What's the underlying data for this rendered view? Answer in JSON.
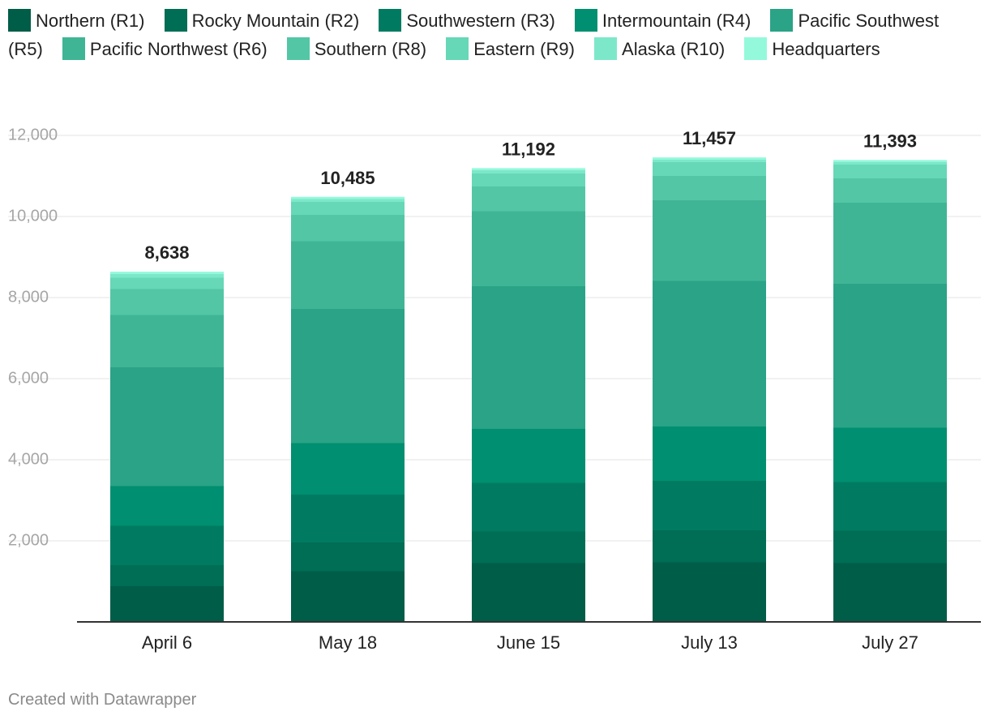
{
  "chart_data": {
    "type": "bar",
    "stacked": true,
    "categories": [
      "April 6",
      "May 18",
      "June 15",
      "July 13",
      "July 27"
    ],
    "totals": [
      "8,638",
      "10,485",
      "11,192",
      "11,457",
      "11,393"
    ],
    "ylim": [
      0,
      12000
    ],
    "yticks": [
      2000,
      4000,
      6000,
      8000,
      10000,
      12000
    ],
    "ytick_labels": [
      "2,000",
      "4,000",
      "6,000",
      "8,000",
      "10,000",
      "12,000"
    ],
    "grid": true,
    "legend_placement": "top",
    "series": [
      {
        "name": "Northern (R1)",
        "color": "#005d48",
        "values": [
          880,
          1250,
          1450,
          1470,
          1450
        ]
      },
      {
        "name": "Rocky Mountain (R2)",
        "color": "#006d55",
        "values": [
          520,
          710,
          780,
          790,
          800
        ]
      },
      {
        "name": "Southwestern (R3)",
        "color": "#007b61",
        "values": [
          970,
          1180,
          1200,
          1220,
          1200
        ]
      },
      {
        "name": "Intermountain (R4)",
        "color": "#008f70",
        "values": [
          980,
          1270,
          1330,
          1340,
          1340
        ]
      },
      {
        "name": "Pacific Southwest (R5)",
        "color": "#2aa386",
        "values": [
          2930,
          3310,
          3520,
          3590,
          3550
        ]
      },
      {
        "name": "Pacific Northwest (R6)",
        "color": "#40b596",
        "values": [
          1290,
          1670,
          1850,
          1990,
          2000
        ]
      },
      {
        "name": "Southern (R8)",
        "color": "#53c6a5",
        "values": [
          640,
          650,
          610,
          600,
          600
        ]
      },
      {
        "name": "Eastern (R9)",
        "color": "#66d7b7",
        "values": [
          280,
          320,
          320,
          340,
          340
        ]
      },
      {
        "name": "Alaska (R10)",
        "color": "#7ce8c9",
        "values": [
          90,
          70,
          80,
          60,
          60
        ]
      },
      {
        "name": "Headquarters",
        "color": "#93f9da",
        "values": [
          58,
          55,
          52,
          57,
          53
        ]
      }
    ]
  },
  "footer": "Created with Datawrapper"
}
